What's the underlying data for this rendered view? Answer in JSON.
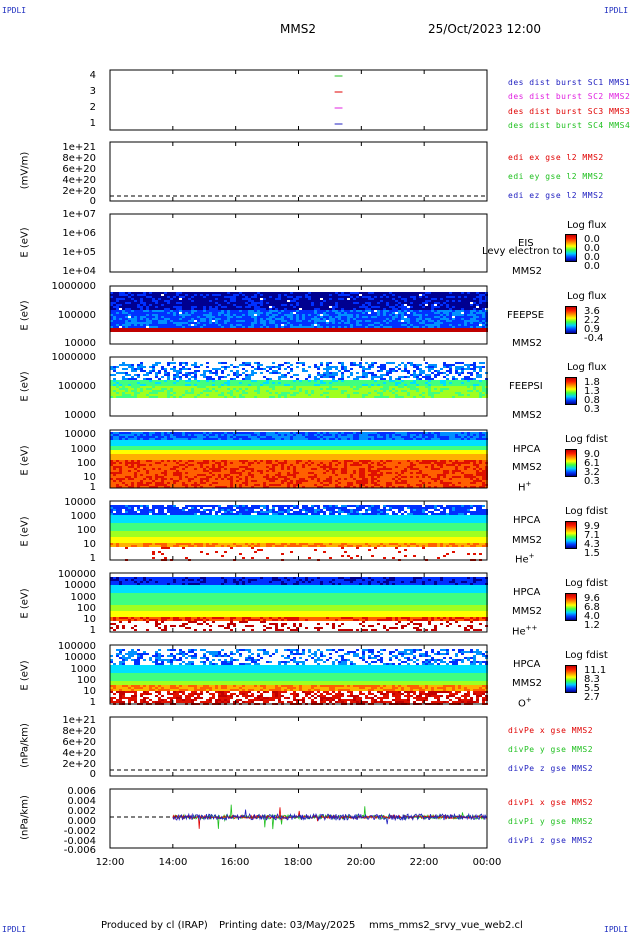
{
  "header": {
    "corner_tl": "IPDLI",
    "corner_tr": "IPDLI",
    "corner_bl": "IPDLI",
    "corner_br": "IPDLI",
    "spacecraft": "MMS2",
    "datetime": "25/Oct/2023 12:00"
  },
  "xaxis": {
    "ticks": [
      "12:00",
      "14:00",
      "16:00",
      "18:00",
      "20:00",
      "22:00",
      "00:00"
    ]
  },
  "panels": {
    "p1": {
      "yticks": [
        "4",
        "3",
        "2",
        "1"
      ],
      "legend": [
        "des dist burst SC1 MMS1",
        "des dist burst SC2 MMS2",
        "des dist burst SC3 MMS3",
        "des dist burst SC4 MMS4"
      ],
      "colors": [
        "#2020c0",
        "#e020e0",
        "#e00000",
        "#20c020"
      ]
    },
    "p2": {
      "ylabel": "(mV/m)",
      "yticks": [
        "1e+21",
        "8e+20",
        "6e+20",
        "4e+20",
        "2e+20",
        "0"
      ],
      "legend": [
        "edi ex gse l2 MMS2",
        "edi ey gse l2 MMS2",
        "edi ez gse l2 MMS2"
      ],
      "colors": [
        "#e00000",
        "#20c020",
        "#2020c0"
      ]
    },
    "p3": {
      "ylabel": "E (eV)",
      "yticks": [
        "1e+07",
        "1e+06",
        "1e+05",
        "1e+04"
      ],
      "inst": "EIS",
      "sc": "MMS2",
      "overlap_text": "Levy electron to",
      "cb_title": "Log flux",
      "cb_values": [
        "0.0",
        "0.0",
        "0.0",
        "0.0"
      ]
    },
    "p4": {
      "ylabel": "E (eV)",
      "yticks": [
        "1000000",
        "100000",
        "10000"
      ],
      "inst": "FEEPSE",
      "sc": "MMS2",
      "cb_title": "Log flux",
      "cb_values": [
        "3.6",
        "2.2",
        "0.9",
        "-0.4"
      ]
    },
    "p5": {
      "ylabel": "E (eV)",
      "yticks": [
        "1000000",
        "100000",
        "10000"
      ],
      "inst": "FEEPSI",
      "sc": "MMS2",
      "cb_title": "Log flux",
      "cb_values": [
        "1.8",
        "1.3",
        "0.8",
        "0.3"
      ]
    },
    "p6": {
      "ylabel": "E (eV)",
      "yticks": [
        "10000",
        "1000",
        "100",
        "10",
        "1"
      ],
      "inst": "HPCA",
      "sc": "MMS2",
      "species": "H",
      "charge": "+",
      "cb_title": "Log fdist",
      "cb_values": [
        "9.0",
        "6.1",
        "3.2",
        "0.3"
      ]
    },
    "p7": {
      "ylabel": "E (eV)",
      "yticks": [
        "10000",
        "1000",
        "100",
        "10",
        "1"
      ],
      "inst": "HPCA",
      "sc": "MMS2",
      "species": "He",
      "charge": "+",
      "cb_title": "Log fdist",
      "cb_values": [
        "9.9",
        "7.1",
        "4.3",
        "1.5"
      ]
    },
    "p8": {
      "ylabel": "E (eV)",
      "yticks": [
        "100000",
        "10000",
        "1000",
        "100",
        "10",
        "1"
      ],
      "inst": "HPCA",
      "sc": "MMS2",
      "species": "He",
      "charge": "++",
      "cb_title": "Log fdist",
      "cb_values": [
        "9.6",
        "6.8",
        "4.0",
        "1.2"
      ]
    },
    "p9": {
      "ylabel": "E (eV)",
      "yticks": [
        "100000",
        "10000",
        "1000",
        "100",
        "10",
        "1"
      ],
      "inst": "HPCA",
      "sc": "MMS2",
      "species": "O",
      "charge": "+",
      "cb_title": "Log fdist",
      "cb_values": [
        "11.1",
        "8.3",
        "5.5",
        "2.7"
      ]
    },
    "p10": {
      "ylabel": "(nPa/km)",
      "yticks": [
        "1e+21",
        "8e+20",
        "6e+20",
        "4e+20",
        "2e+20",
        "0"
      ],
      "legend": [
        "divPe x gse MMS2",
        "divPe y gse MMS2",
        "divPe z gse MMS2"
      ],
      "colors": [
        "#e00000",
        "#20c020",
        "#2020c0"
      ]
    },
    "p11": {
      "ylabel": "(nPa/km)",
      "yticks": [
        "0.006",
        "0.004",
        "0.002",
        "0.000",
        "-0.002",
        "-0.004",
        "-0.006"
      ],
      "legend": [
        "divPi x gse MMS2",
        "divPi y gse MMS2",
        "divPi z gse MMS2"
      ],
      "colors": [
        "#e00000",
        "#20c020",
        "#2020c0"
      ]
    }
  },
  "footer": {
    "produced": "Produced by cl (IRAP)",
    "printing": "Printing date: 03/May/2025",
    "script": "mms_mms2_srvy_vue_web2.cl"
  },
  "chart_data": {
    "type": "heatmap",
    "x_range": [
      "2023-10-25 12:00",
      "2023-10-26 00:00"
    ],
    "x_ticks": [
      "12:00",
      "14:00",
      "16:00",
      "18:00",
      "20:00",
      "22:00",
      "00:00"
    ],
    "panels": [
      {
        "name": "des dist burst",
        "type": "line",
        "y_range": [
          1,
          4
        ],
        "series": [
          {
            "name": "des dist burst SC1 MMS1",
            "segments": [
              [
                "19:10",
                "19:25"
              ]
            ]
          },
          {
            "name": "des dist burst SC2 MMS2",
            "segments": [
              [
                "19:10",
                "19:25"
              ]
            ]
          },
          {
            "name": "des dist burst SC3 MMS3",
            "segments": [
              [
                "19:10",
                "19:25"
              ]
            ]
          },
          {
            "name": "des dist burst SC4 MMS4",
            "segments": [
              [
                "19:10",
                "19:25"
              ]
            ]
          }
        ]
      },
      {
        "name": "edi e gse l2 MMS2",
        "type": "line",
        "ylabel": "(mV/m)",
        "y_range": [
          0,
          1e+21
        ],
        "series_values": "0"
      },
      {
        "name": "EIS MMS2",
        "type": "heatmap",
        "ylabel": "E (eV)",
        "y_range": [
          10000.0,
          10000000.0
        ],
        "log": true,
        "colorbar": [
          0.0,
          0.0
        ],
        "coverage": "none"
      },
      {
        "name": "FEEPSE MMS2",
        "type": "heatmap",
        "ylabel": "E (eV)",
        "y_range": [
          10000.0,
          1000000.0
        ],
        "log": true,
        "colorbar": [
          -0.4,
          3.6
        ]
      },
      {
        "name": "FEEPSI MMS2",
        "type": "heatmap",
        "ylabel": "E (eV)",
        "y_range": [
          10000.0,
          1000000.0
        ],
        "log": true,
        "colorbar": [
          0.3,
          1.8
        ]
      },
      {
        "name": "HPCA MMS2 H+",
        "type": "heatmap",
        "ylabel": "E (eV)",
        "y_range": [
          1,
          30000
        ],
        "log": true,
        "colorbar": [
          0.3,
          9.0
        ]
      },
      {
        "name": "HPCA MMS2 He+",
        "type": "heatmap",
        "ylabel": "E (eV)",
        "y_range": [
          1,
          30000
        ],
        "log": true,
        "colorbar": [
          1.5,
          9.9
        ]
      },
      {
        "name": "HPCA MMS2 He++",
        "type": "heatmap",
        "ylabel": "E (eV)",
        "y_range": [
          1,
          100000
        ],
        "log": true,
        "colorbar": [
          1.2,
          9.6
        ]
      },
      {
        "name": "HPCA MMS2 O+",
        "type": "heatmap",
        "ylabel": "E (eV)",
        "y_range": [
          1,
          100000
        ],
        "log": true,
        "colorbar": [
          2.7,
          11.1
        ]
      },
      {
        "name": "divPe gse MMS2",
        "type": "line",
        "ylabel": "(nPa/km)",
        "y_range": [
          0,
          1e+21
        ],
        "series_values": "0"
      },
      {
        "name": "divPi gse MMS2",
        "type": "line",
        "ylabel": "(nPa/km)",
        "y_range": [
          -0.006,
          0.006
        ],
        "series": [
          {
            "name": "divPi x gse MMS2",
            "start": "14:00",
            "peak": 0.004
          },
          {
            "name": "divPi y gse MMS2",
            "start": "14:00",
            "peak": -0.004
          },
          {
            "name": "divPi z gse MMS2",
            "start": "14:00",
            "peak": 0.002
          }
        ]
      }
    ]
  }
}
